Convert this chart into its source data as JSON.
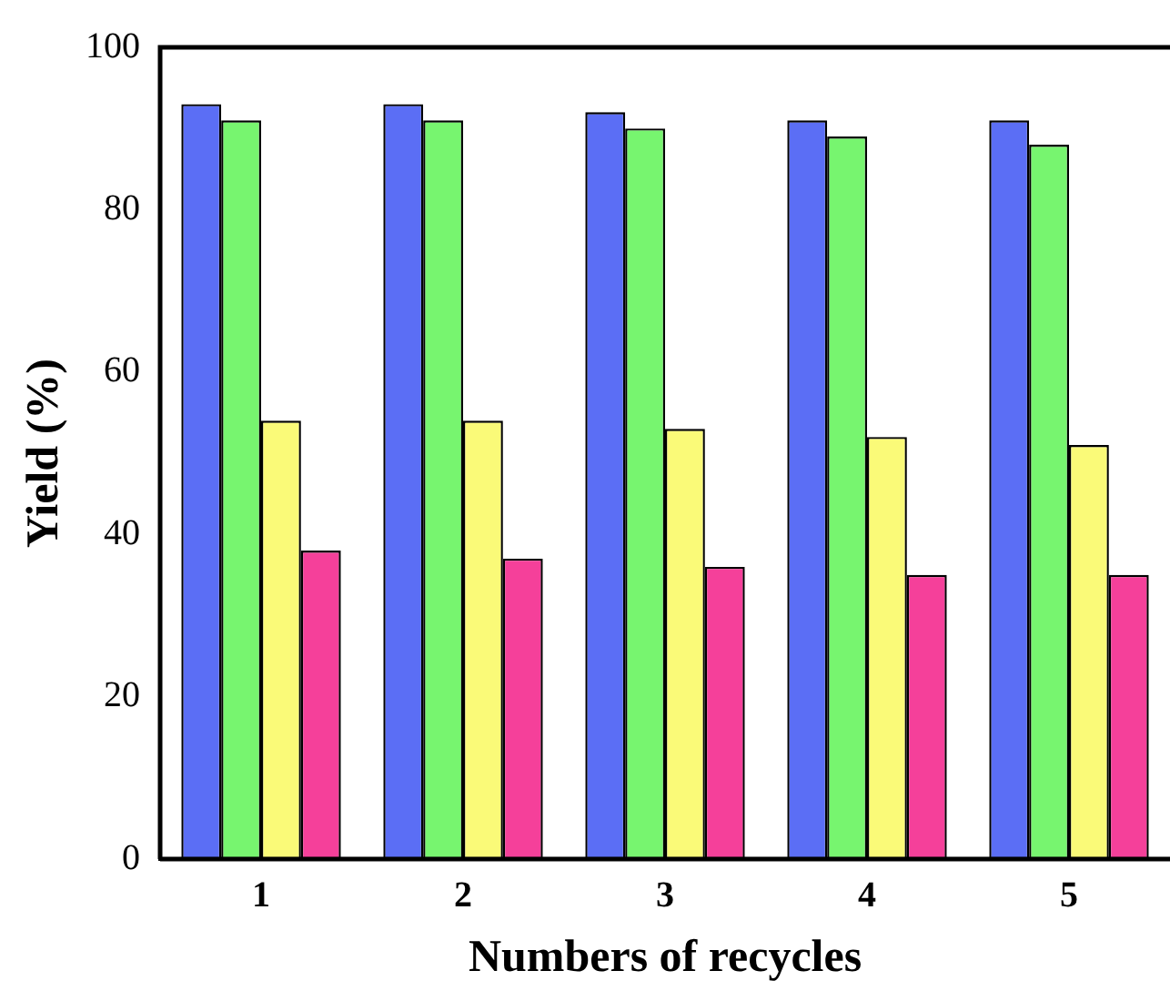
{
  "chart_data": {
    "type": "bar",
    "xlabel": "Numbers of recycles",
    "ylabel": "Yield (%)",
    "categories": [
      "1",
      "2",
      "3",
      "4",
      "5"
    ],
    "series": [
      {
        "color": "#5b6ef5",
        "values": [
          93,
          93,
          92,
          91,
          91
        ]
      },
      {
        "color": "#77f56f",
        "values": [
          91,
          91,
          90,
          89,
          88
        ]
      },
      {
        "color": "#fafa78",
        "values": [
          54,
          54,
          53,
          52,
          51
        ]
      },
      {
        "color": "#f5409a",
        "values": [
          38,
          37,
          36,
          35,
          35
        ]
      }
    ],
    "ylim": [
      0,
      100
    ],
    "yticks": [
      0,
      20,
      40,
      60,
      80,
      100
    ],
    "grid": false,
    "legend": false
  }
}
